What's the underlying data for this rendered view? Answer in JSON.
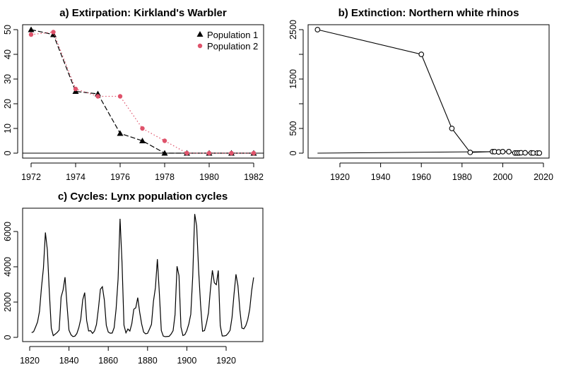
{
  "chart_data": [
    {
      "type": "line",
      "title": "a) Extirpation: Kirkland's Warbler",
      "xlabel": "",
      "ylabel": "",
      "xlim": [
        1972,
        1982
      ],
      "ylim": [
        0,
        50
      ],
      "xticks": [
        1972,
        1974,
        1976,
        1978,
        1980,
        1982
      ],
      "yticks": [
        0,
        10,
        20,
        30,
        40,
        50
      ],
      "x": [
        1972,
        1973,
        1974,
        1975,
        1976,
        1977,
        1978,
        1979,
        1980,
        1981,
        1982
      ],
      "series": [
        {
          "name": "Population 1",
          "values": [
            50,
            48,
            25,
            24,
            8,
            5,
            0,
            0,
            0,
            0,
            0
          ],
          "color": "#000000",
          "marker": "triangle",
          "line": "dashed"
        },
        {
          "name": "Population 2",
          "values": [
            48,
            49,
            26,
            23,
            23,
            10,
            5,
            0,
            0,
            0,
            0
          ],
          "color": "#DF536B",
          "marker": "circle",
          "line": "dotted"
        }
      ],
      "hline": 0,
      "legend": "top-right"
    },
    {
      "type": "line",
      "title": "b) Extinction: Northern white rhinos",
      "xlabel": "",
      "ylabel": "",
      "xlim": [
        1909,
        2018
      ],
      "ylim": [
        0,
        2500
      ],
      "xticks": [
        1920,
        1940,
        1960,
        1980,
        2000,
        2020
      ],
      "yticks": [
        0,
        500,
        1500,
        2500
      ],
      "x": [
        1909,
        1960,
        1975,
        1984,
        1995,
        1996,
        1998,
        2000,
        2003,
        2006,
        2007,
        2008,
        2009,
        2011,
        2014,
        2015,
        2017,
        2018
      ],
      "values": [
        2500,
        2000,
        500,
        15,
        31,
        30,
        25,
        30,
        30,
        4,
        4,
        4,
        8,
        7,
        5,
        3,
        3,
        2
      ],
      "color": "#000000",
      "marker": "open-circle"
    },
    {
      "type": "line",
      "title": "c) Cycles: Lynx population cycles",
      "xlabel": "",
      "ylabel": "",
      "x_start": 1821,
      "xticks": [
        1820,
        1840,
        1860,
        1880,
        1900,
        1920
      ],
      "yticks": [
        0,
        2000,
        4000,
        6000
      ],
      "values": [
        269,
        321,
        585,
        871,
        1475,
        2821,
        3928,
        5943,
        4950,
        2577,
        523,
        98,
        184,
        279,
        409,
        2285,
        2685,
        3409,
        1824,
        409,
        151,
        45,
        68,
        213,
        546,
        1033,
        2129,
        2536,
        957,
        361,
        377,
        225,
        360,
        731,
        1638,
        2725,
        2871,
        2119,
        684,
        299,
        236,
        245,
        552,
        1623,
        3311,
        6721,
        4254,
        687,
        255,
        473,
        358,
        784,
        1594,
        1676,
        2251,
        1426,
        756,
        299,
        201,
        229,
        469,
        736,
        2042,
        2811,
        4431,
        2511,
        389,
        73,
        39,
        49,
        59,
        188,
        377,
        1292,
        4031,
        3495,
        587,
        105,
        153,
        387,
        758,
        1307,
        3465,
        6991,
        6313,
        3794,
        1836,
        345,
        382,
        808,
        1388,
        2713,
        3800,
        3091,
        2985,
        3790,
        674,
        81,
        80,
        108,
        229,
        399,
        1132,
        2432,
        3574,
        2935,
        1537,
        529,
        485,
        662,
        1000,
        1590,
        2657,
        3396
      ],
      "color": "#000000"
    }
  ]
}
